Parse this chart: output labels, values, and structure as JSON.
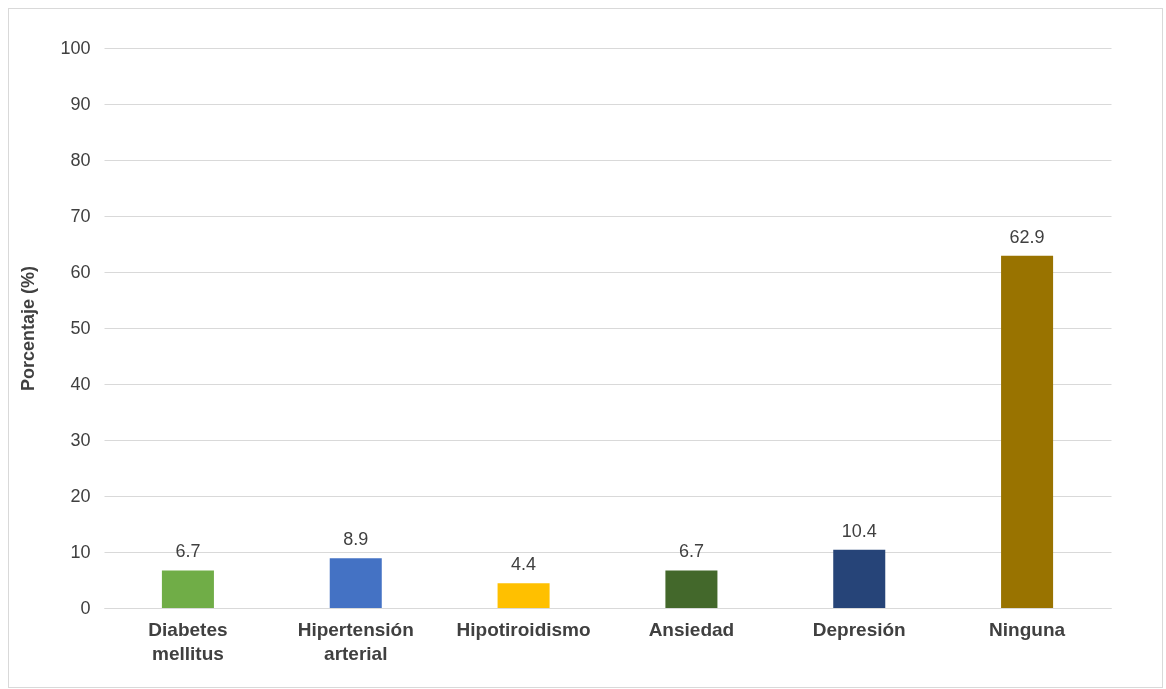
{
  "chart_data": {
    "type": "bar",
    "ylabel": "Porcentaje (%)",
    "categories": [
      "Diabetes mellitus",
      "Hipertensión arterial",
      "Hipotiroidismo",
      "Ansiedad",
      "Depresión",
      "Ninguna"
    ],
    "values": [
      6.7,
      8.9,
      4.4,
      6.7,
      10.4,
      62.9
    ],
    "colors": [
      "#70ad47",
      "#4472c4",
      "#ffc000",
      "#43682b",
      "#264478",
      "#997300"
    ],
    "ylim": [
      0,
      100
    ],
    "yticks": [
      0,
      10,
      20,
      30,
      40,
      50,
      60,
      70,
      80,
      90,
      100
    ],
    "grid": "y",
    "data_labels": true,
    "legend": false
  }
}
